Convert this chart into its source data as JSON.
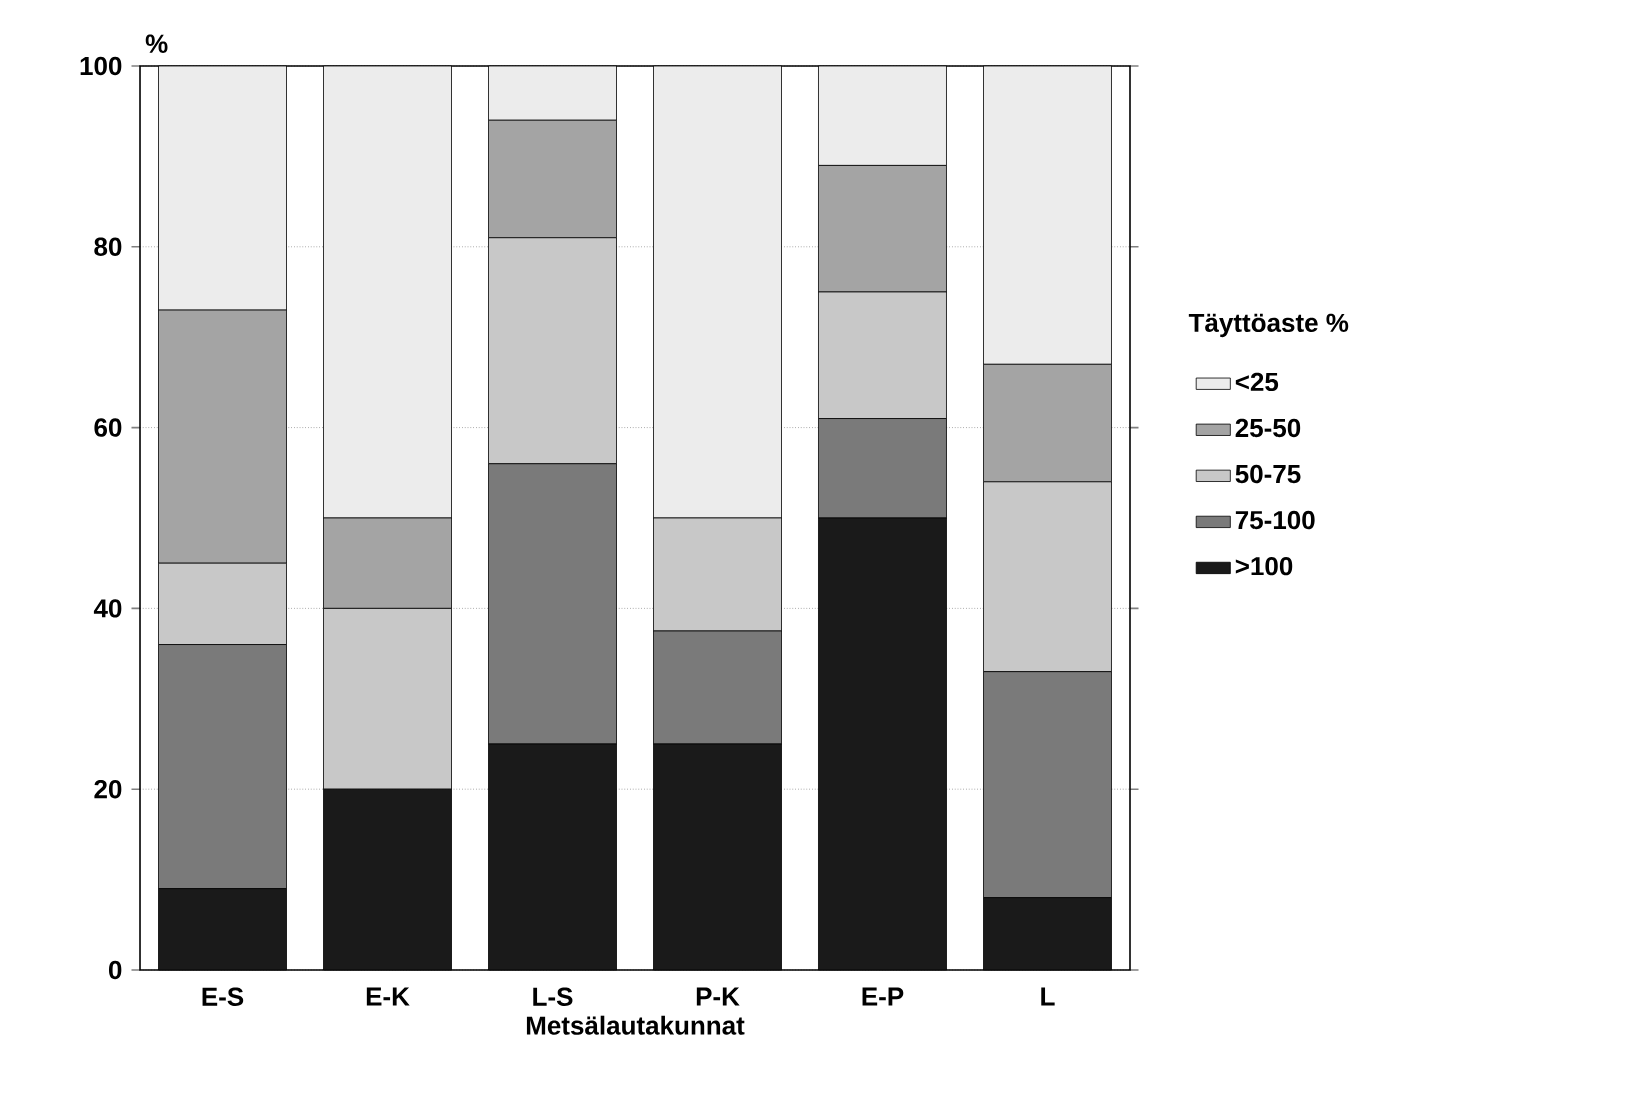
{
  "chart_data": {
    "type": "bar",
    "stacked": true,
    "ylabel": "%",
    "xlabel": "Metsälautakunnat",
    "legend_title": "Täyttöaste %",
    "categories": [
      "E-S",
      "E-K",
      "L-S",
      "P-K",
      "E-P",
      "L"
    ],
    "series": [
      {
        "name": ">100",
        "color": "#1a1a1a",
        "values": [
          9,
          20,
          25,
          25,
          50,
          8
        ]
      },
      {
        "name": "75-100",
        "color": "#7a7a7a",
        "values": [
          27,
          0,
          31,
          12.5,
          11,
          25
        ]
      },
      {
        "name": "50-75",
        "color": "#c8c8c8",
        "values": [
          9,
          20,
          25,
          12.5,
          14,
          21
        ]
      },
      {
        "name": "25-50",
        "color": "#a4a4a4",
        "values": [
          28,
          10,
          13,
          0,
          14,
          13
        ]
      },
      {
        "name": "<25",
        "color": "#ececec",
        "values": [
          27,
          50,
          6,
          50,
          11,
          33
        ]
      }
    ],
    "ylim": [
      0,
      100
    ],
    "yticks": [
      0,
      20,
      40,
      60,
      80,
      100
    ],
    "grid": "y",
    "legend": "right"
  }
}
